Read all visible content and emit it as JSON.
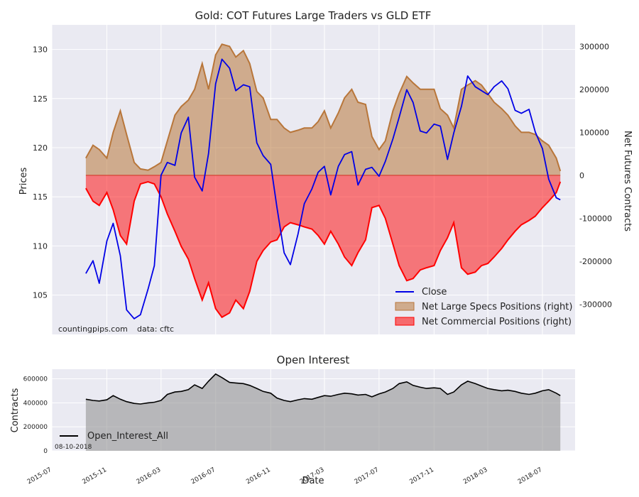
{
  "chart_data": [
    {
      "type": "line+area",
      "title": "Gold: COT Futures Large Traders vs GLD ETF",
      "ylabel_left": "Prices",
      "ylabel_right": "Net Futures Contracts",
      "ylim_left": [
        101,
        132.5
      ],
      "ylim_right": [
        -370000,
        350000
      ],
      "yticks_left": [
        "105",
        "110",
        "115",
        "120",
        "125",
        "130"
      ],
      "yticks_right": [
        "-300000",
        "-200000",
        "-100000",
        "0",
        "100000",
        "200000",
        "300000"
      ],
      "x_range": [
        "2015-07-01",
        "2018-09-12"
      ],
      "dates": [
        "2015-09-15",
        "2015-10-01",
        "2015-10-15",
        "2015-11-01",
        "2015-11-15",
        "2015-12-01",
        "2015-12-15",
        "2016-01-01",
        "2016-01-15",
        "2016-02-01",
        "2016-02-15",
        "2016-03-01",
        "2016-03-15",
        "2016-04-01",
        "2016-04-15",
        "2016-05-01",
        "2016-05-15",
        "2016-06-01",
        "2016-06-15",
        "2016-07-01",
        "2016-07-15",
        "2016-08-01",
        "2016-08-15",
        "2016-09-01",
        "2016-09-15",
        "2016-10-01",
        "2016-10-15",
        "2016-11-01",
        "2016-11-15",
        "2016-12-01",
        "2016-12-15",
        "2017-01-01",
        "2017-01-15",
        "2017-02-01",
        "2017-02-15",
        "2017-03-01",
        "2017-03-15",
        "2017-04-01",
        "2017-04-15",
        "2017-05-01",
        "2017-05-15",
        "2017-06-01",
        "2017-06-15",
        "2017-07-01",
        "2017-07-15",
        "2017-08-01",
        "2017-08-15",
        "2017-09-01",
        "2017-09-15",
        "2017-10-01",
        "2017-10-15",
        "2017-11-01",
        "2017-11-15",
        "2017-12-01",
        "2017-12-15",
        "2018-01-01",
        "2018-01-15",
        "2018-02-01",
        "2018-02-15",
        "2018-03-01",
        "2018-03-15",
        "2018-04-01",
        "2018-04-15",
        "2018-05-01",
        "2018-05-15",
        "2018-06-01",
        "2018-06-15",
        "2018-07-01",
        "2018-07-15",
        "2018-08-01",
        "2018-08-10"
      ],
      "series": [
        {
          "name": "Close",
          "axis": "left",
          "color": "#0000e6",
          "values": [
            107.2,
            108.5,
            106.2,
            110.5,
            112.3,
            109.0,
            103.5,
            102.6,
            103.0,
            105.6,
            108.0,
            117.2,
            118.5,
            118.2,
            121.5,
            123.1,
            117.0,
            115.6,
            119.4,
            126.5,
            129.0,
            128.1,
            125.8,
            126.4,
            126.2,
            120.5,
            119.2,
            118.3,
            113.9,
            109.3,
            108.1,
            111.2,
            114.3,
            115.8,
            117.5,
            118.1,
            115.2,
            118.1,
            119.3,
            119.6,
            116.2,
            117.8,
            118.0,
            117.1,
            118.6,
            120.9,
            123.1,
            125.9,
            124.6,
            121.7,
            121.5,
            122.4,
            122.2,
            118.8,
            121.5,
            124.2,
            127.3,
            126.2,
            125.8,
            125.4,
            126.2,
            126.8,
            126.0,
            123.8,
            123.5,
            123.9,
            121.6,
            119.9,
            116.8,
            114.9,
            114.7
          ]
        },
        {
          "name": "Net Large Specs Positions (right)",
          "axis": "right",
          "color": "#b8763a",
          "values": [
            40000,
            70000,
            60000,
            40000,
            100000,
            150000,
            95000,
            30000,
            15000,
            12000,
            20000,
            30000,
            80000,
            140000,
            160000,
            175000,
            200000,
            260000,
            200000,
            280000,
            305000,
            300000,
            275000,
            290000,
            260000,
            195000,
            180000,
            130000,
            130000,
            110000,
            100000,
            105000,
            110000,
            110000,
            125000,
            150000,
            110000,
            145000,
            180000,
            200000,
            170000,
            165000,
            90000,
            60000,
            80000,
            150000,
            190000,
            230000,
            215000,
            200000,
            200000,
            200000,
            155000,
            140000,
            110000,
            200000,
            210000,
            220000,
            210000,
            190000,
            170000,
            155000,
            140000,
            115000,
            100000,
            100000,
            95000,
            80000,
            70000,
            40000,
            10000
          ]
        },
        {
          "name": "Net Commercial Positions (right)",
          "axis": "right",
          "color": "#ff0000",
          "values": [
            -30000,
            -60000,
            -70000,
            -40000,
            -80000,
            -140000,
            -160000,
            -60000,
            -20000,
            -15000,
            -20000,
            -50000,
            -90000,
            -130000,
            -165000,
            -195000,
            -240000,
            -290000,
            -250000,
            -310000,
            -330000,
            -320000,
            -290000,
            -310000,
            -270000,
            -200000,
            -175000,
            -155000,
            -150000,
            -120000,
            -110000,
            -115000,
            -120000,
            -125000,
            -140000,
            -160000,
            -130000,
            -160000,
            -190000,
            -210000,
            -180000,
            -150000,
            -75000,
            -70000,
            -100000,
            -160000,
            -210000,
            -245000,
            -240000,
            -220000,
            -215000,
            -210000,
            -175000,
            -145000,
            -110000,
            -215000,
            -230000,
            -225000,
            -210000,
            -205000,
            -190000,
            -170000,
            -150000,
            -130000,
            -115000,
            -105000,
            -95000,
            -75000,
            -60000,
            -40000,
            -15000
          ]
        }
      ],
      "legend_position": "bottom-right",
      "annotations": [
        "countingpips.com",
        "data: cftc"
      ]
    },
    {
      "type": "area",
      "title": "Open Interest",
      "xlabel": "Date",
      "ylabel": "Contracts",
      "ylim": [
        0,
        680000
      ],
      "yticks": [
        "0",
        "200000",
        "400000",
        "600000"
      ],
      "xticks": [
        "2015-07",
        "2015-11",
        "2016-03",
        "2016-07",
        "2016-11",
        "2017-03",
        "2017-07",
        "2017-11",
        "2018-03",
        "2018-07"
      ],
      "legend_position": "bottom-left",
      "annotations": [
        "08-10-2018"
      ],
      "series": [
        {
          "name": "Open_Interest_All",
          "color": "#000000",
          "values": [
            430000,
            420000,
            415000,
            425000,
            460000,
            430000,
            410000,
            395000,
            390000,
            400000,
            405000,
            420000,
            470000,
            490000,
            495000,
            510000,
            550000,
            520000,
            580000,
            640000,
            610000,
            570000,
            565000,
            560000,
            545000,
            520000,
            495000,
            480000,
            440000,
            420000,
            410000,
            425000,
            435000,
            430000,
            445000,
            460000,
            455000,
            470000,
            480000,
            475000,
            465000,
            470000,
            450000,
            475000,
            490000,
            520000,
            560000,
            575000,
            545000,
            530000,
            520000,
            525000,
            520000,
            470000,
            490000,
            550000,
            580000,
            560000,
            540000,
            520000,
            510000,
            500000,
            505000,
            495000,
            480000,
            470000,
            480000,
            500000,
            510000,
            480000,
            460000
          ]
        }
      ]
    }
  ]
}
